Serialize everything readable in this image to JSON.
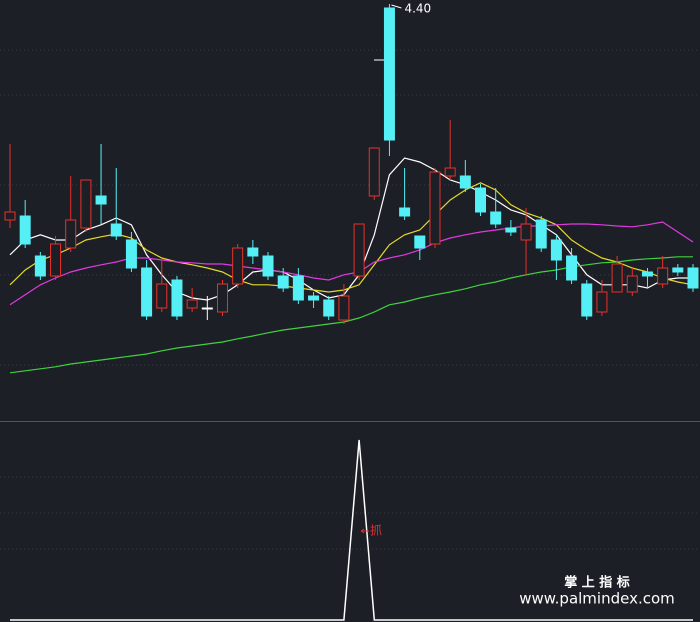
{
  "chart_data": [
    {
      "type": "candlestick",
      "categories": [
        null,
        null,
        null,
        null,
        null,
        null,
        null,
        null,
        null,
        null,
        null,
        null,
        null,
        null,
        null,
        null,
        null,
        null,
        null,
        null,
        null,
        null,
        null,
        null,
        null,
        null,
        null,
        null,
        null,
        null,
        null,
        null,
        null,
        null,
        null,
        null,
        null,
        null,
        null,
        null,
        null,
        null,
        null,
        null,
        null,
        null
      ],
      "open": [
        3.86,
        3.87,
        3.77,
        3.72,
        3.79,
        3.84,
        3.92,
        3.85,
        3.81,
        3.74,
        3.64,
        3.71,
        3.64,
        3.64,
        3.63,
        3.7,
        3.79,
        3.77,
        3.72,
        3.72,
        3.67,
        3.66,
        3.61,
        3.72,
        3.92,
        4.39,
        3.89,
        3.82,
        3.8,
        3.97,
        3.97,
        3.94,
        3.88,
        3.84,
        3.81,
        3.86,
        3.81,
        3.77,
        3.7,
        3.63,
        3.68,
        3.68,
        3.73,
        3.7,
        3.74,
        3.74
      ],
      "high": [
        4.05,
        3.91,
        3.78,
        3.82,
        3.97,
        3.96,
        4.05,
        3.99,
        3.83,
        3.76,
        3.76,
        3.72,
        3.69,
        3.67,
        3.71,
        3.8,
        3.81,
        3.78,
        3.74,
        3.74,
        3.68,
        3.67,
        3.7,
        3.85,
        4.04,
        4.4,
        3.99,
        3.82,
        3.99,
        4.11,
        4.01,
        3.95,
        3.94,
        3.86,
        3.89,
        3.87,
        3.82,
        3.79,
        3.71,
        3.71,
        3.77,
        3.74,
        3.74,
        3.77,
        3.75,
        3.75
      ],
      "low": [
        3.84,
        3.79,
        3.71,
        3.71,
        3.78,
        3.83,
        3.85,
        3.81,
        3.73,
        3.61,
        3.63,
        3.61,
        3.63,
        3.61,
        3.62,
        3.69,
        3.75,
        3.71,
        3.68,
        3.65,
        3.64,
        3.61,
        3.6,
        3.71,
        3.91,
        4.02,
        3.86,
        3.76,
        3.79,
        3.96,
        3.93,
        3.87,
        3.84,
        3.82,
        3.72,
        3.78,
        3.71,
        3.7,
        3.61,
        3.62,
        3.68,
        3.67,
        3.69,
        3.69,
        3.72,
        3.68
      ],
      "close": [
        3.88,
        3.8,
        3.72,
        3.8,
        3.86,
        3.96,
        3.9,
        3.82,
        3.74,
        3.62,
        3.7,
        3.62,
        3.66,
        3.64,
        3.7,
        3.79,
        3.77,
        3.72,
        3.69,
        3.66,
        3.66,
        3.62,
        3.67,
        3.85,
        4.04,
        4.06,
        3.87,
        3.79,
        3.98,
        3.99,
        3.94,
        3.88,
        3.85,
        3.83,
        3.85,
        3.79,
        3.76,
        3.71,
        3.62,
        3.68,
        3.75,
        3.72,
        3.72,
        3.74,
        3.73,
        3.69
      ],
      "up_color": "#e8312a",
      "down_color": "#54f0f5",
      "flat_color": "#ffffff",
      "lines": [
        {
          "color": "#ffffff",
          "values": [
            3.773,
            3.81,
            3.823,
            3.81,
            3.81,
            3.835,
            3.848,
            3.865,
            3.848,
            3.773,
            3.723,
            3.68,
            3.665,
            3.66,
            3.673,
            3.698,
            3.73,
            3.735,
            3.73,
            3.71,
            3.685,
            3.665,
            3.673,
            3.723,
            3.823,
            3.973,
            4.015,
            4.005,
            3.985,
            3.96,
            3.948,
            3.93,
            3.91,
            3.885,
            3.873,
            3.848,
            3.823,
            3.773,
            3.723,
            3.698,
            3.698,
            3.698,
            3.69,
            3.71,
            3.715,
            3.715
          ]
        },
        {
          "color": "#e6d829",
          "values": [
            3.698,
            3.735,
            3.76,
            3.773,
            3.79,
            3.81,
            3.818,
            3.825,
            3.815,
            3.785,
            3.765,
            3.755,
            3.748,
            3.74,
            3.73,
            3.71,
            3.698,
            3.698,
            3.695,
            3.69,
            3.685,
            3.68,
            3.685,
            3.698,
            3.748,
            3.798,
            3.823,
            3.835,
            3.873,
            3.91,
            3.935,
            3.953,
            3.935,
            3.898,
            3.878,
            3.865,
            3.848,
            3.81,
            3.785,
            3.765,
            3.755,
            3.74,
            3.73,
            3.715,
            3.705,
            3.698
          ]
        },
        {
          "color": "#e03ae0",
          "values": [
            3.648,
            3.673,
            3.698,
            3.715,
            3.73,
            3.74,
            3.748,
            3.755,
            3.765,
            3.765,
            3.76,
            3.755,
            3.753,
            3.75,
            3.75,
            3.745,
            3.74,
            3.735,
            3.73,
            3.723,
            3.715,
            3.71,
            3.723,
            3.73,
            3.755,
            3.765,
            3.773,
            3.785,
            3.803,
            3.815,
            3.823,
            3.83,
            3.835,
            3.84,
            3.845,
            3.845,
            3.848,
            3.85,
            3.85,
            3.848,
            3.845,
            3.843,
            3.848,
            3.855,
            3.83,
            3.805
          ]
        },
        {
          "color": "#3fd23f",
          "values": [
            3.478,
            3.483,
            3.488,
            3.493,
            3.5,
            3.505,
            3.51,
            3.515,
            3.52,
            3.525,
            3.533,
            3.54,
            3.545,
            3.55,
            3.555,
            3.563,
            3.57,
            3.578,
            3.585,
            3.59,
            3.595,
            3.6,
            3.605,
            3.615,
            3.63,
            3.648,
            3.655,
            3.665,
            3.673,
            3.68,
            3.688,
            3.698,
            3.705,
            3.715,
            3.723,
            3.73,
            3.735,
            3.743,
            3.748,
            3.753,
            3.755,
            3.76,
            3.763,
            3.765,
            3.768,
            3.768
          ]
        }
      ],
      "annotation": "4.40",
      "ylim": [
        3.36,
        4.41
      ]
    },
    {
      "type": "line",
      "values": [
        0,
        0,
        0,
        0,
        0,
        0,
        0,
        0,
        0,
        0,
        0,
        0,
        0,
        0,
        0,
        0,
        0,
        0,
        0,
        0,
        0,
        0,
        0,
        1,
        0,
        0,
        0,
        0,
        0,
        0,
        0,
        0,
        0,
        0,
        0,
        0,
        0,
        0,
        0,
        0,
        0,
        0,
        0,
        0,
        0,
        0
      ],
      "color": "#ffffff",
      "annotation": "抓",
      "annotation_color": "#e03030",
      "ylim": [
        0,
        1.1
      ]
    }
  ],
  "watermark": {
    "title": "掌 上 指 标",
    "url": "www.palmindex.com"
  }
}
